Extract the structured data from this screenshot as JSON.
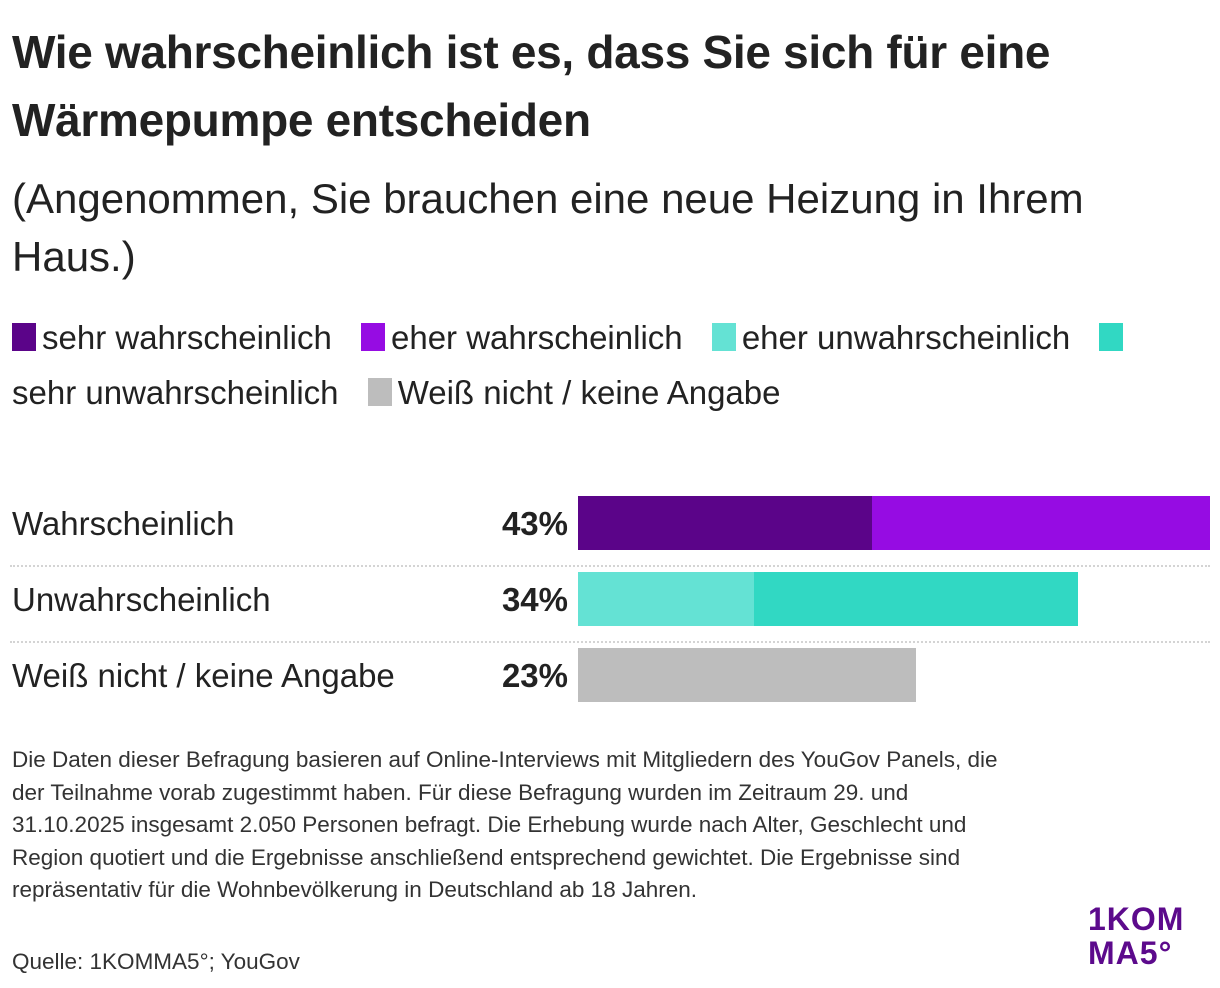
{
  "header": {
    "title": "Wie wahrscheinlich ist es, dass Sie sich für eine Wärmepumpe entscheiden",
    "subtitle": "(Angenommen, Sie brauchen eine neue Heizung in Ihrem Haus.)"
  },
  "legend": [
    {
      "label": "sehr wahrscheinlich",
      "color": "#5b0489"
    },
    {
      "label": "eher wahrscheinlich",
      "color": "#960ce3"
    },
    {
      "label": "eher unwahrscheinlich",
      "color": "#64e2d4"
    },
    {
      "label": "sehr unwahrscheinlich",
      "color": "#31d8c3"
    },
    {
      "label": "Weiß nicht / keine Angabe",
      "color": "#bdbdbd"
    }
  ],
  "chart_data": {
    "type": "bar",
    "orientation": "horizontal-stacked",
    "title": "Wie wahrscheinlich ist es, dass Sie sich für eine Wärmepumpe entscheiden",
    "subtitle": "(Angenommen, Sie brauchen eine neue Heizung in Ihrem Haus.)",
    "categories": [
      "Wahrscheinlich",
      "Unwahrscheinlich",
      "Weiß nicht / keine Angabe"
    ],
    "totals_labels": [
      "43%",
      "34%",
      "23%"
    ],
    "series": [
      {
        "name": "sehr wahrscheinlich",
        "color": "#5b0489",
        "values": [
          20,
          0,
          0
        ]
      },
      {
        "name": "eher wahrscheinlich",
        "color": "#960ce3",
        "values": [
          23,
          0,
          0
        ]
      },
      {
        "name": "eher unwahrscheinlich",
        "color": "#64e2d4",
        "values": [
          0,
          12,
          0
        ]
      },
      {
        "name": "sehr unwahrscheinlich",
        "color": "#31d8c3",
        "values": [
          0,
          22,
          0
        ]
      },
      {
        "name": "Weiß nicht / keine Angabe",
        "color": "#bdbdbd",
        "values": [
          0,
          0,
          23
        ]
      }
    ],
    "xlim": [
      0,
      43
    ],
    "unit": "%",
    "legend_position": "top",
    "grid": false
  },
  "notes": "Die Daten dieser Befragung basieren auf Online-Interviews mit Mitgliedern des YouGov Panels, die der Teilnahme vorab zugestimmt haben. Für diese Befragung wurden im Zeitraum 29. und 31.10.2025 insgesamt 2.050 Personen befragt. Die Erhebung wurde nach Alter, Geschlecht und Region quotiert und die Ergebnisse anschließend entsprechend gewichtet. Die Ergebnisse sind repräsentativ für die Wohnbevölkerung in Deutschland ab 18 Jahren.",
  "source": "Quelle: 1KOMMA5°; YouGov",
  "logo": {
    "line1": "1KOM",
    "line2": "MA5°",
    "color": "#5c0a8c"
  }
}
